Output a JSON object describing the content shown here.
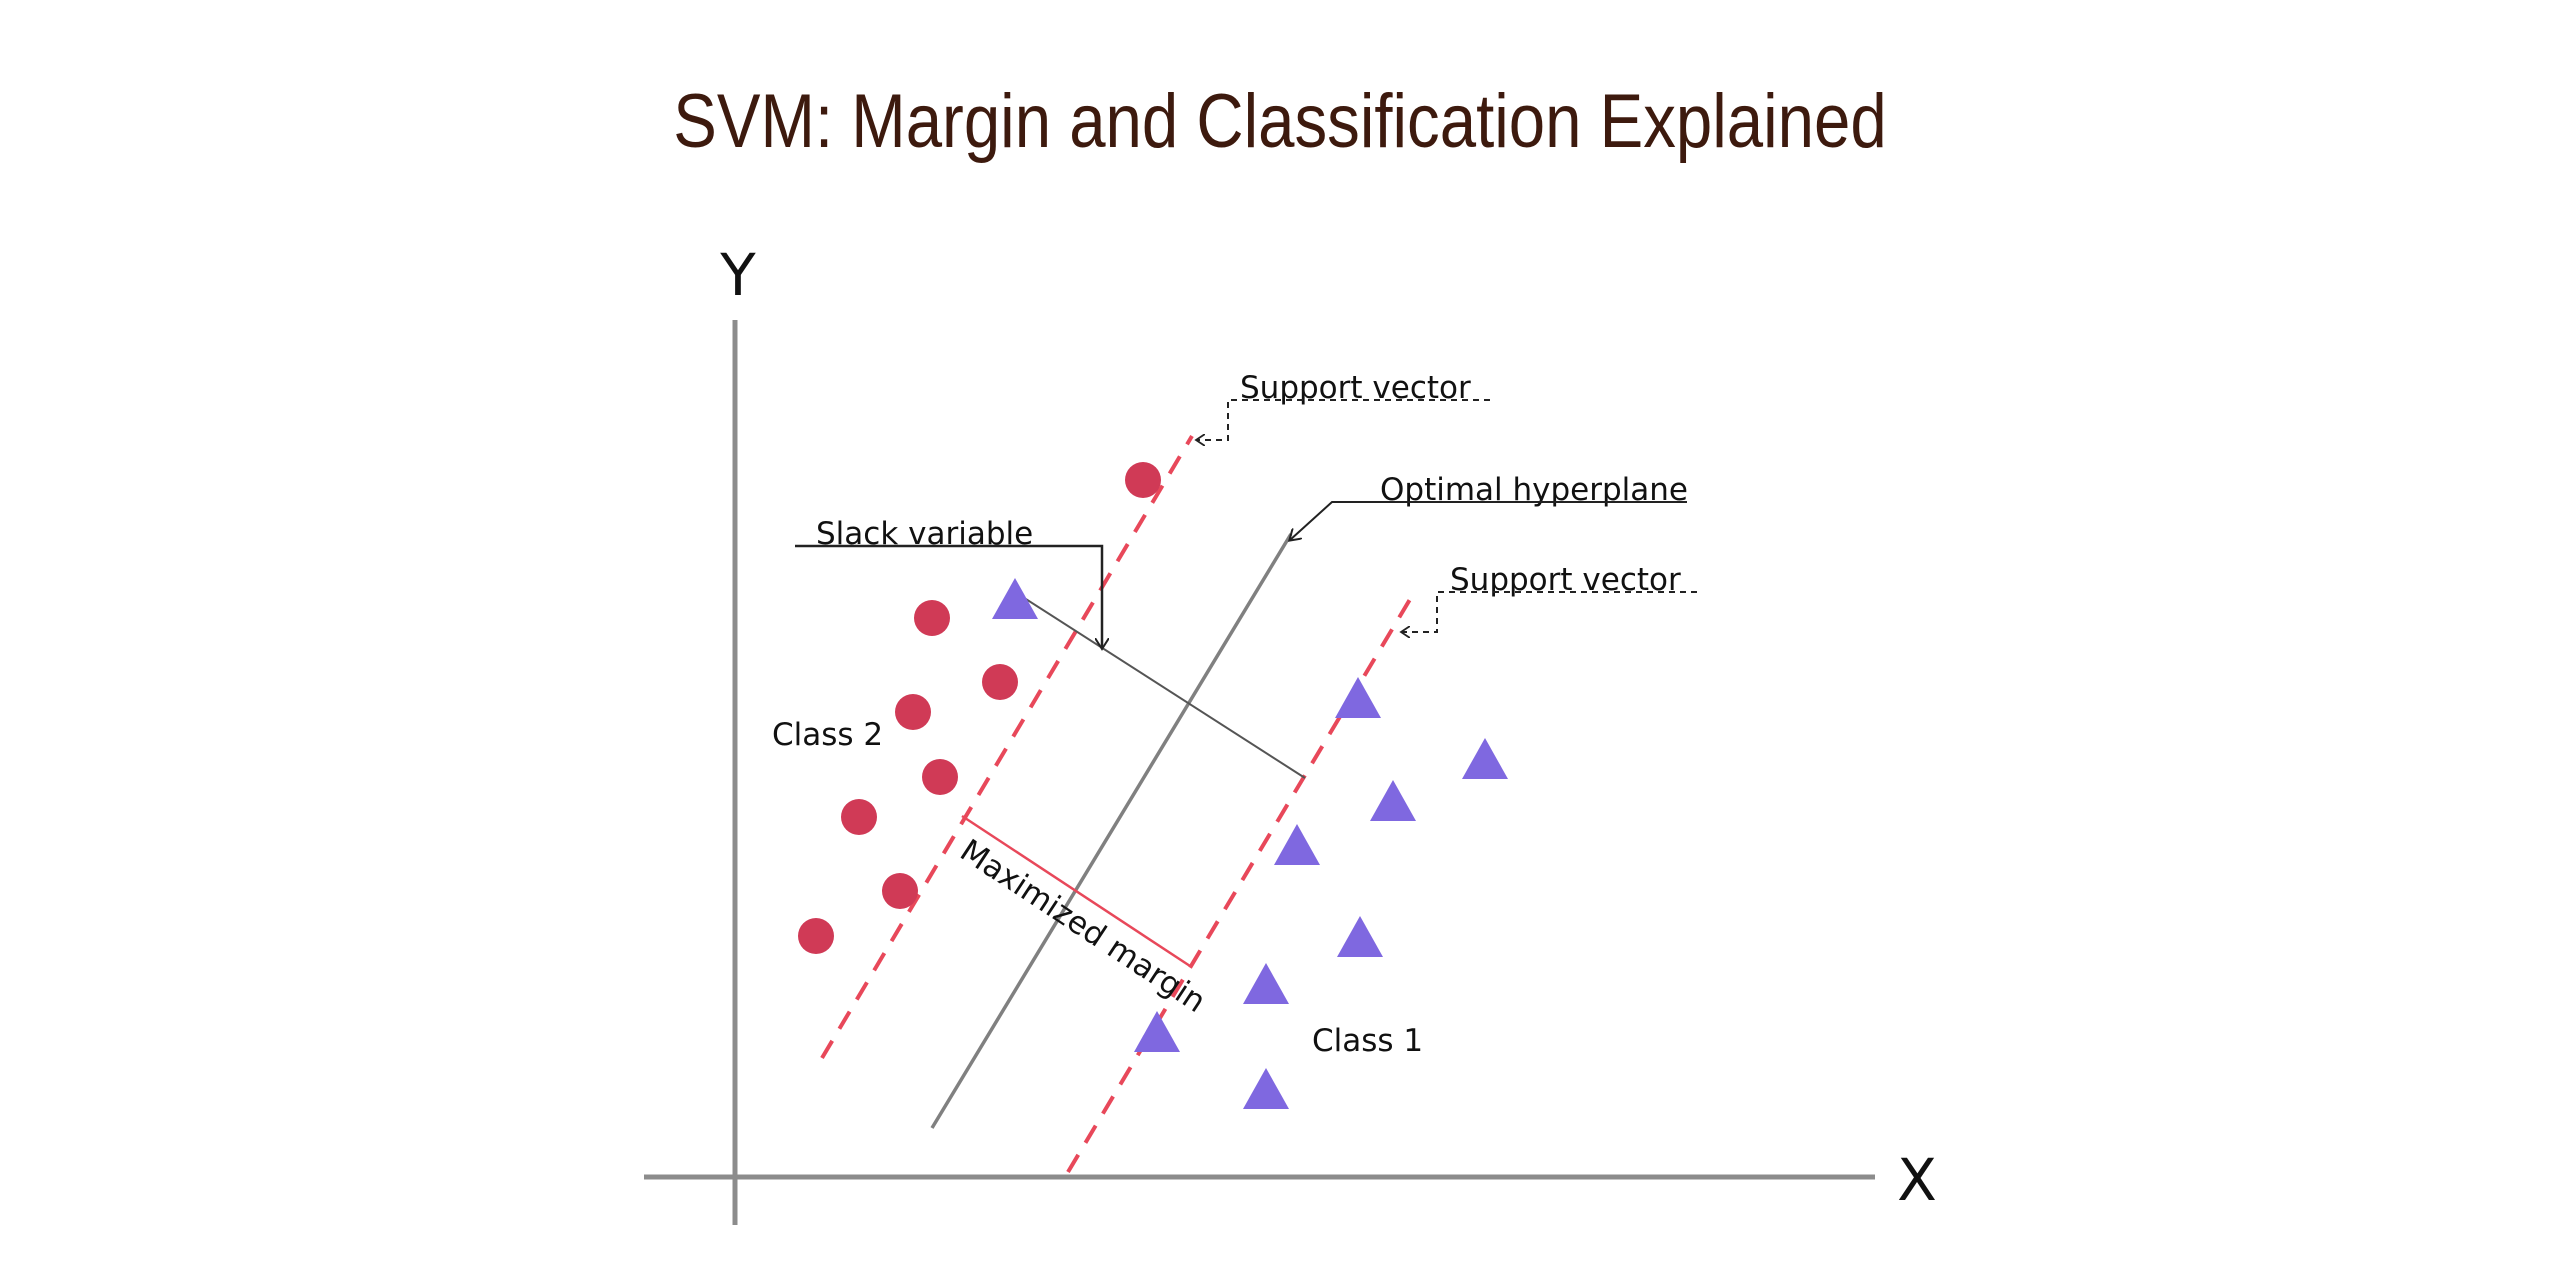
{
  "title": "SVM: Margin and Classification Explained",
  "axes": {
    "x_label": "X",
    "y_label": "Y"
  },
  "labels": {
    "support_vector_top": "Support vector",
    "support_vector_bottom": "Support vector",
    "optimal_hyperplane": "Optimal hyperplane",
    "slack_variable": "Slack variable",
    "class2": "Class 2",
    "class1": "Class 1",
    "maximized_margin": "Maximized margin"
  },
  "colors": {
    "title": "#3d1a0e",
    "class2_circle": "#d03a56",
    "class1_triangle": "#7f68e0",
    "margin_line": "#e8485a",
    "hyperplane": "#808080",
    "axis": "#8c8c8c"
  },
  "markers": {
    "class2": "circle",
    "class1": "triangle"
  }
}
